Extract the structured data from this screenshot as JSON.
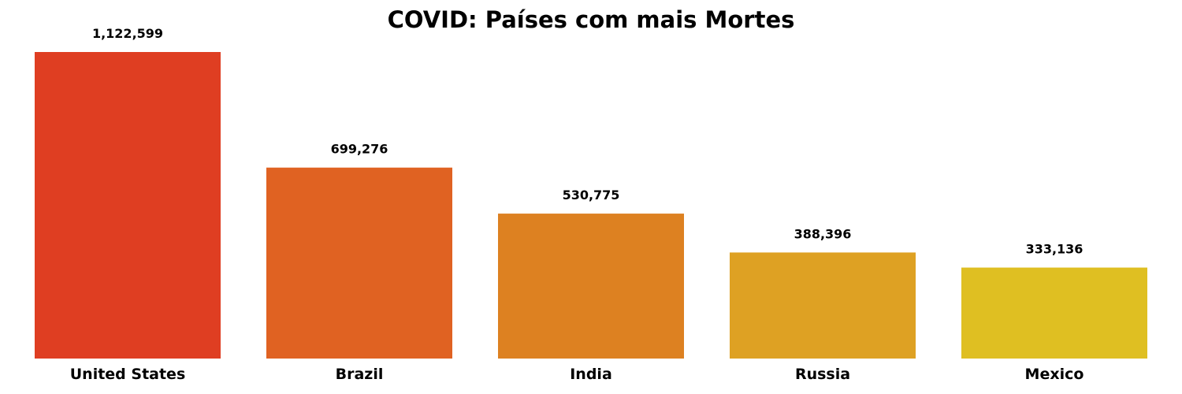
{
  "chart_data": {
    "type": "bar",
    "title": "COVID: Países com mais Mortes",
    "xlabel": "",
    "ylabel": "",
    "categories": [
      "United States",
      "Brazil",
      "India",
      "Russia",
      "Mexico"
    ],
    "values": [
      1122599,
      699276,
      530775,
      388396,
      333136
    ],
    "value_labels": [
      "1,122,599",
      "699,276",
      "530,775",
      "388,396",
      "333,136"
    ],
    "colors": [
      "#df3e22",
      "#e06222",
      "#dd8121",
      "#dea123",
      "#dfbf22"
    ],
    "ylim": [
      0,
      1122599
    ],
    "grid": false,
    "legend": "none"
  }
}
